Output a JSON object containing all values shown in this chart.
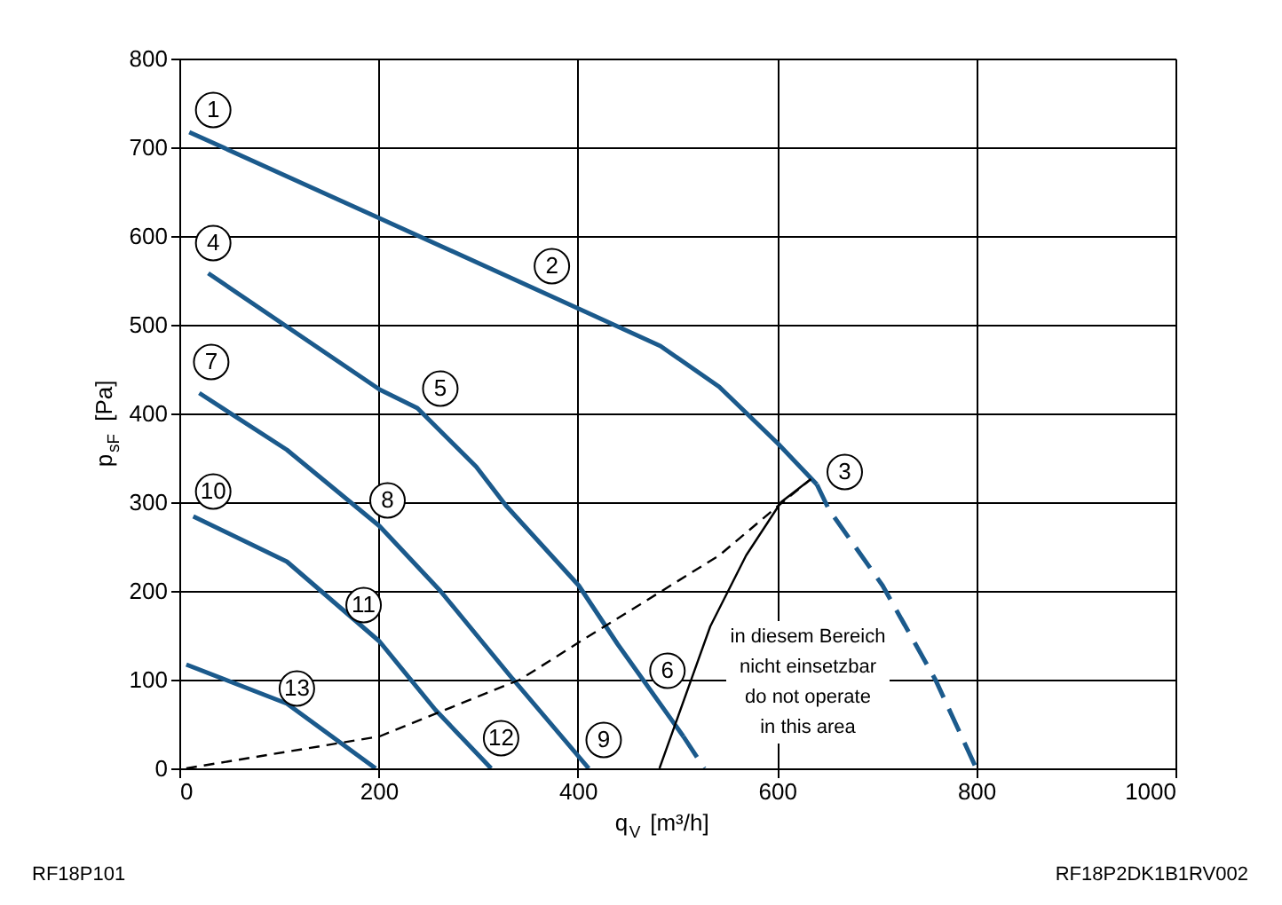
{
  "chart_data": {
    "type": "line",
    "xlabel": "q$_{V}$ [m³/h]",
    "ylabel": "p$_{sF}$ [Pa]",
    "xlim": [
      0,
      1000
    ],
    "xticks": [
      0,
      200,
      400,
      600,
      800,
      1000
    ],
    "ylim": [
      0,
      800
    ],
    "yticks": [
      0,
      100,
      200,
      300,
      400,
      500,
      600,
      700,
      800
    ],
    "grid": true,
    "marker": "none",
    "series": [
      {
        "color": "#1b5a8c",
        "line_style": "solid",
        "x": [
          10,
          201,
          401,
          483,
          542,
          601,
          640
        ],
        "values": [
          717,
          620,
          518,
          476,
          430,
          366,
          320
        ]
      },
      {
        "color": "#1b5a8c",
        "line_style": "dashed",
        "x": [
          640,
          652,
          706,
          759,
          800
        ],
        "values": [
          320,
          292,
          206,
          100,
          0
        ]
      },
      {
        "color": "#1b5a8c",
        "line_style": "solid",
        "x": [
          29,
          201,
          239,
          298,
          328,
          401,
          440,
          506
        ],
        "values": [
          558,
          427,
          406,
          340,
          296,
          206,
          140,
          36
        ]
      },
      {
        "color": "#1b5a8c",
        "line_style": "dashed",
        "x": [
          506,
          527
        ],
        "values": [
          36,
          0
        ]
      },
      {
        "color": "#1b5a8c",
        "line_style": "solid",
        "x": [
          20,
          108,
          201,
          262,
          333,
          411
        ],
        "values": [
          423,
          359,
          273,
          200,
          103,
          0
        ]
      },
      {
        "color": "#1b5a8c",
        "line_style": "solid",
        "x": [
          14,
          108,
          201,
          257,
          313
        ],
        "values": [
          284,
          233,
          143,
          66,
          0
        ]
      },
      {
        "color": "#1b5a8c",
        "line_style": "solid",
        "x": [
          7,
          108,
          197
        ],
        "values": [
          117,
          73,
          0
        ]
      },
      {
        "color": "#000000",
        "line_style": "dashed",
        "x": [
          7,
          201,
          342,
          401,
          542,
          598,
          634
        ],
        "values": [
          0,
          36,
          100,
          142,
          240,
          293,
          326
        ]
      },
      {
        "color": "#000000",
        "line_style": "solid",
        "x": [
          482,
          533,
          569,
          604,
          634
        ],
        "values": [
          0,
          160,
          240,
          300,
          326
        ]
      }
    ],
    "annotations": [
      {
        "text": "1",
        "x": 34,
        "y": 742
      },
      {
        "text": "2",
        "x": 374,
        "y": 566
      },
      {
        "text": "3",
        "x": 668,
        "y": 334
      },
      {
        "text": "4",
        "x": 34,
        "y": 592
      },
      {
        "text": "5",
        "x": 262,
        "y": 428
      },
      {
        "text": "6",
        "x": 490,
        "y": 110
      },
      {
        "text": "7",
        "x": 32,
        "y": 458
      },
      {
        "text": "8",
        "x": 209,
        "y": 302
      },
      {
        "text": "9",
        "x": 426,
        "y": 32
      },
      {
        "text": "10",
        "x": 34,
        "y": 312
      },
      {
        "text": "11",
        "x": 185,
        "y": 184
      },
      {
        "text": "12",
        "x": 323,
        "y": 34
      },
      {
        "text": "13",
        "x": 118,
        "y": 90
      },
      "in diesem Bereich\nnicht einsetzbar\ndo not operate\nin this area",
      "RF18P101",
      "RF18P2DK1B1RV002"
    ]
  }
}
